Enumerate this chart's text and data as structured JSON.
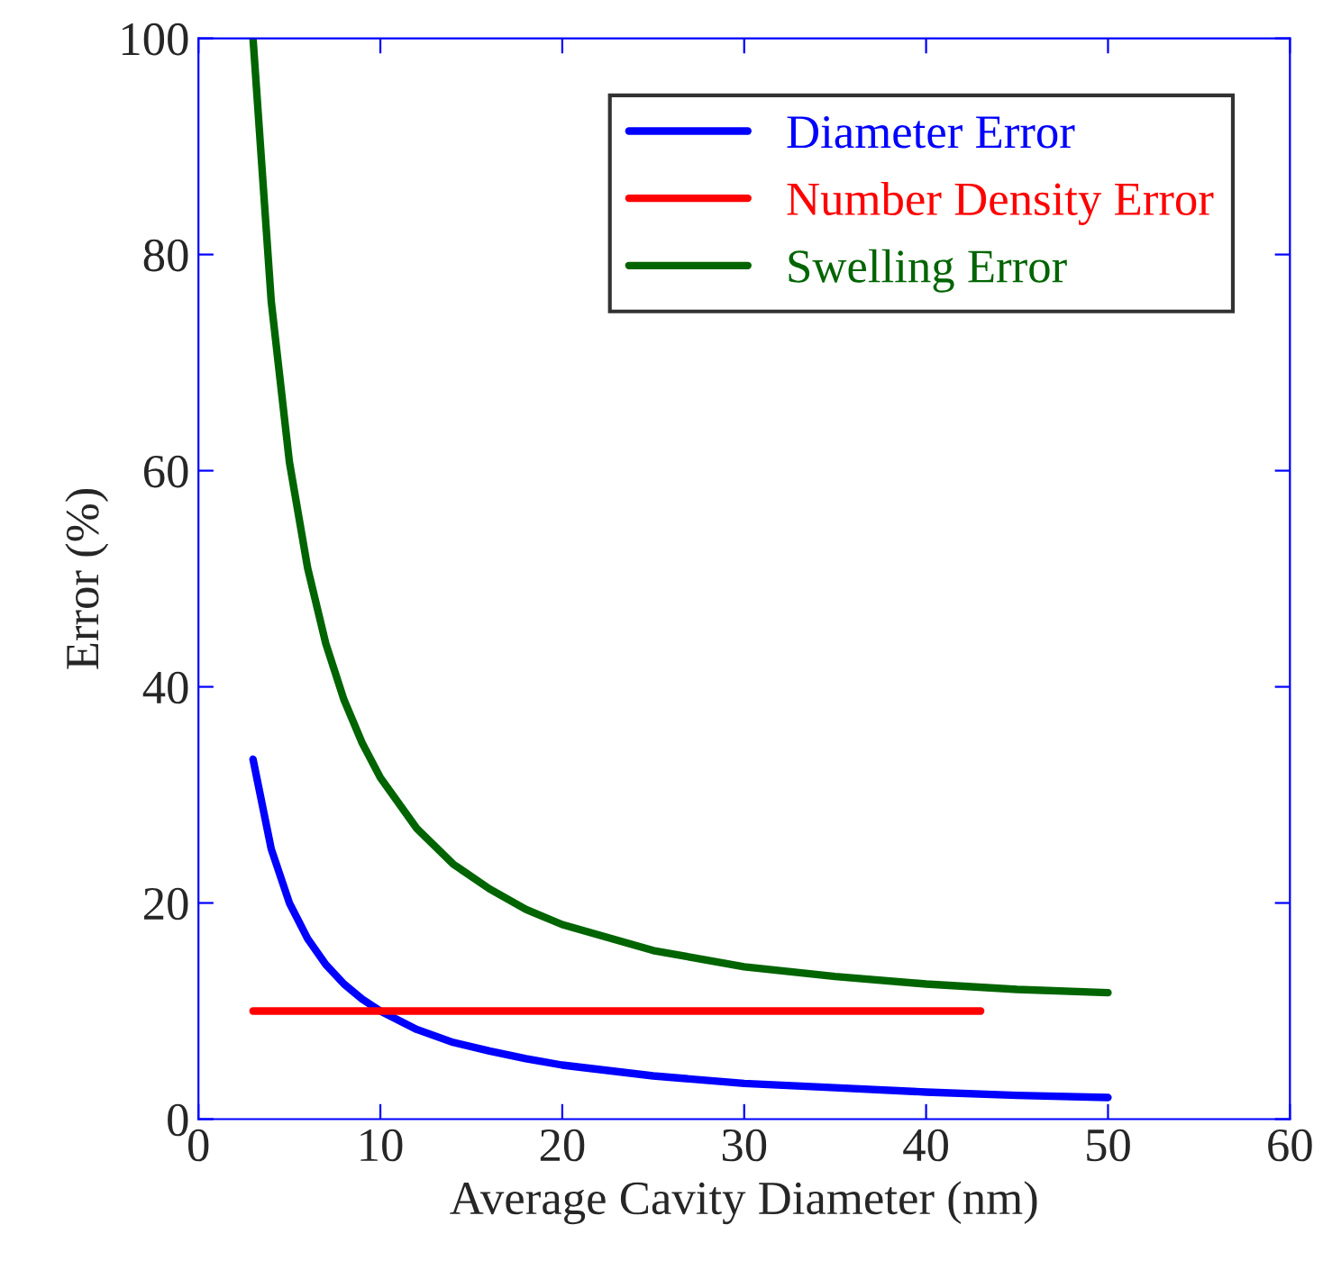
{
  "chart_data": {
    "type": "line",
    "xlabel": "Average Cavity Diameter (nm)",
    "ylabel": "Error (%)",
    "x": [
      3,
      4,
      5,
      6,
      7,
      8,
      9,
      10,
      12,
      14,
      16,
      18,
      20,
      25,
      30,
      35,
      40,
      45,
      50
    ],
    "series": [
      {
        "name": "Diameter Error",
        "color": "#0000ff",
        "values": [
          33.3,
          25,
          20,
          16.7,
          14.3,
          12.5,
          11.1,
          10,
          8.3,
          7.1,
          6.3,
          5.6,
          5,
          4,
          3.3,
          2.9,
          2.5,
          2.2,
          2
        ]
      },
      {
        "name": "Number Density Error",
        "color": "#ff0000",
        "x": [
          3,
          43
        ],
        "values": [
          10,
          10
        ]
      },
      {
        "name": "Swelling Error",
        "color": "#006400",
        "values": [
          100,
          75.7,
          60.8,
          51,
          44,
          38.8,
          34.8,
          31.6,
          26.9,
          23.6,
          21.3,
          19.4,
          18,
          15.6,
          14.1,
          13.2,
          12.5,
          12,
          11.7
        ]
      }
    ],
    "xlim": [
      0,
      60
    ],
    "xticks": [
      0,
      10,
      20,
      30,
      40,
      50,
      60
    ],
    "ylim": [
      0,
      100
    ],
    "yticks": [
      0,
      20,
      40,
      60,
      80,
      100
    ],
    "grid": false,
    "legend": "top right",
    "marker": "none",
    "line_style": "solid"
  }
}
